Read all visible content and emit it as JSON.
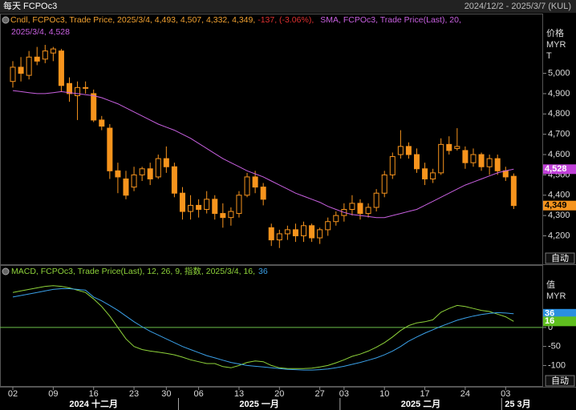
{
  "header": {
    "title": "每天 FCPOc3",
    "range": "2024/12/2 - 2025/3/7 (KUL)"
  },
  "chart_data": [
    {
      "type": "candlestick",
      "legend": [
        {
          "text": "Cndl, FCPOc3, Trade Price, 2025/3/4, 4,493, 4,507, 4,332, 4,349, ",
          "color": "#f0a030"
        },
        {
          "text": "-137, (-3.06%),",
          "color": "#e03030"
        },
        {
          "text": "SMA, FCPOc3, Trade Price(Last), 20,",
          "color": "#c860e0"
        },
        {
          "text": "2025/3/4, 4,528",
          "color": "#c860e0"
        }
      ],
      "categories": [
        "02",
        null,
        null,
        null,
        null,
        "09",
        null,
        null,
        null,
        null,
        "16",
        null,
        null,
        null,
        null,
        "23",
        null,
        null,
        null,
        "30",
        null,
        null,
        null,
        "06",
        null,
        null,
        null,
        null,
        "13",
        null,
        null,
        null,
        null,
        "20",
        null,
        null,
        null,
        null,
        "27",
        null,
        null,
        "03",
        null,
        null,
        null,
        null,
        "10",
        null,
        null,
        null,
        null,
        "17",
        null,
        null,
        null,
        null,
        "24",
        null,
        null,
        null,
        null,
        "03",
        null
      ],
      "month_labels": [
        "2024 十二月",
        "2025 一月",
        "2025 二月",
        "25 3月"
      ],
      "color": "#f7941d",
      "open": [
        4960,
        5030,
        4990,
        5080,
        5070,
        5100,
        5110,
        4950,
        4890,
        4930,
        4900,
        4770,
        4730,
        4520,
        4480,
        4440,
        4500,
        4530,
        4490,
        4580,
        4540,
        4410,
        4320,
        4350,
        4330,
        4380,
        4310,
        4290,
        4310,
        4400,
        4490,
        4440,
        4240,
        4180,
        4210,
        4230,
        4200,
        4250,
        4190,
        4230,
        4270,
        4300,
        4330,
        4360,
        4310,
        4340,
        4410,
        4500,
        4600,
        4640,
        4600,
        4530,
        4480,
        4510,
        4650,
        4630,
        4620,
        4560,
        4600,
        4540,
        4580,
        4520,
        4493
      ],
      "high": [
        5060,
        5080,
        5110,
        5130,
        5140,
        5130,
        5120,
        4980,
        4960,
        4960,
        4920,
        4790,
        4750,
        4560,
        4520,
        4540,
        4540,
        4560,
        4600,
        4640,
        4560,
        4440,
        4400,
        4380,
        4420,
        4400,
        4360,
        4340,
        4420,
        4510,
        4520,
        4460,
        4260,
        4230,
        4250,
        4260,
        4270,
        4260,
        4240,
        4290,
        4320,
        4360,
        4400,
        4380,
        4360,
        4430,
        4520,
        4610,
        4720,
        4660,
        4630,
        4560,
        4530,
        4680,
        4690,
        4730,
        4640,
        4630,
        4610,
        4600,
        4600,
        4540,
        4507
      ],
      "low": [
        4930,
        4960,
        4970,
        5040,
        5050,
        5060,
        4910,
        4860,
        4770,
        4900,
        4760,
        4720,
        4480,
        4410,
        4380,
        4420,
        4470,
        4450,
        4480,
        4510,
        4390,
        4280,
        4280,
        4290,
        4310,
        4280,
        4240,
        4250,
        4290,
        4390,
        4410,
        4350,
        4150,
        4140,
        4180,
        4170,
        4170,
        4170,
        4160,
        4200,
        4250,
        4270,
        4300,
        4280,
        4290,
        4320,
        4390,
        4480,
        4580,
        4580,
        4510,
        4450,
        4460,
        4500,
        4600,
        4620,
        4530,
        4540,
        4520,
        4500,
        4500,
        4470,
        4332
      ],
      "close": [
        5030,
        5000,
        5080,
        5060,
        5110,
        5120,
        4940,
        4900,
        4930,
        4930,
        4770,
        4740,
        4520,
        4490,
        4400,
        4500,
        4530,
        4480,
        4580,
        4540,
        4410,
        4320,
        4350,
        4330,
        4380,
        4310,
        4290,
        4320,
        4400,
        4490,
        4440,
        4380,
        4180,
        4210,
        4230,
        4200,
        4250,
        4190,
        4230,
        4270,
        4300,
        4330,
        4360,
        4310,
        4340,
        4410,
        4500,
        4590,
        4640,
        4600,
        4530,
        4480,
        4510,
        4650,
        4620,
        4640,
        4560,
        4600,
        4540,
        4580,
        4520,
        4490,
        4349
      ],
      "sma": {
        "color": "#c860e0",
        "values": [
          4915,
          4910,
          4905,
          4900,
          4900,
          4905,
          4910,
          4905,
          4900,
          4895,
          4890,
          4880,
          4865,
          4850,
          4830,
          4810,
          4790,
          4770,
          4750,
          4735,
          4720,
          4700,
          4680,
          4655,
          4630,
          4605,
          4580,
          4560,
          4540,
          4520,
          4505,
          4490,
          4470,
          4450,
          4430,
          4410,
          4395,
          4380,
          4365,
          4345,
          4330,
          4315,
          4305,
          4300,
          4295,
          4290,
          4290,
          4300,
          4310,
          4320,
          4330,
          4350,
          4370,
          4390,
          4410,
          4430,
          4450,
          4465,
          4480,
          4495,
          4510,
          4520,
          4528
        ]
      },
      "ylim": [
        4060,
        5290
      ],
      "yticks": [
        {
          "value": 5000,
          "label": "5,000"
        },
        {
          "value": 4900,
          "label": "4,900"
        },
        {
          "value": 4800,
          "label": "4,800"
        },
        {
          "value": 4700,
          "label": "4,700"
        },
        {
          "value": 4600,
          "label": "4,600"
        },
        {
          "value": 4500,
          "label": "4,500"
        },
        {
          "value": 4400,
          "label": "4,400"
        },
        {
          "value": 4300,
          "label": "4,300"
        },
        {
          "value": 4200,
          "label": "4,200"
        }
      ],
      "axis_label": [
        "价格",
        "MYR",
        "T"
      ],
      "markers": [
        {
          "value": 4528,
          "label": "4,528",
          "color": "#c040d8"
        },
        {
          "value": 4349,
          "label": "4,349",
          "color": "#f7941d"
        }
      ],
      "button": "自动"
    },
    {
      "type": "line",
      "legend": [
        {
          "text": "MACD, FCPOc3, Trade Price(Last),  12, 26, 9, 指数, 2025/3/4, 16,",
          "color": "#8ed33a"
        },
        {
          "text": "36",
          "color": "#3aa0e8"
        }
      ],
      "series": [
        {
          "color": "#8ed33a",
          "values": [
            92,
            96,
            100,
            104,
            108,
            110,
            108,
            104,
            98,
            92,
            75,
            55,
            30,
            0,
            -30,
            -50,
            -58,
            -62,
            -65,
            -68,
            -72,
            -78,
            -85,
            -90,
            -95,
            -95,
            -103,
            -106,
            -100,
            -92,
            -88,
            -90,
            -100,
            -106,
            -108,
            -108,
            -108,
            -107,
            -104,
            -100,
            -93,
            -85,
            -76,
            -70,
            -62,
            -52,
            -40,
            -25,
            -8,
            5,
            12,
            15,
            20,
            40,
            50,
            58,
            55,
            50,
            45,
            42,
            35,
            28,
            16
          ]
        },
        {
          "color": "#3aa0e8",
          "values": [
            80,
            84,
            88,
            92,
            96,
            100,
            102,
            102,
            100,
            98,
            80,
            70,
            58,
            45,
            30,
            15,
            2,
            -10,
            -20,
            -30,
            -40,
            -50,
            -58,
            -66,
            -74,
            -80,
            -86,
            -92,
            -96,
            -100,
            -102,
            -104,
            -106,
            -108,
            -110,
            -111,
            -112,
            -112,
            -111,
            -109,
            -106,
            -102,
            -97,
            -92,
            -86,
            -80,
            -72,
            -62,
            -50,
            -36,
            -25,
            -15,
            -6,
            3,
            11,
            19,
            25,
            30,
            34,
            37,
            39,
            38,
            36
          ]
        }
      ],
      "reference_line": {
        "value": 0,
        "color": "#6cc04a"
      },
      "ylim": [
        -156,
        162
      ],
      "yticks": [
        0,
        -50,
        -100
      ],
      "axis_label": [
        "值",
        "MYR"
      ],
      "markers": [
        {
          "value": 36,
          "color": "#2a8fe0"
        },
        {
          "value": 16,
          "color": "#5fbf1f"
        }
      ],
      "button": "自动"
    }
  ]
}
